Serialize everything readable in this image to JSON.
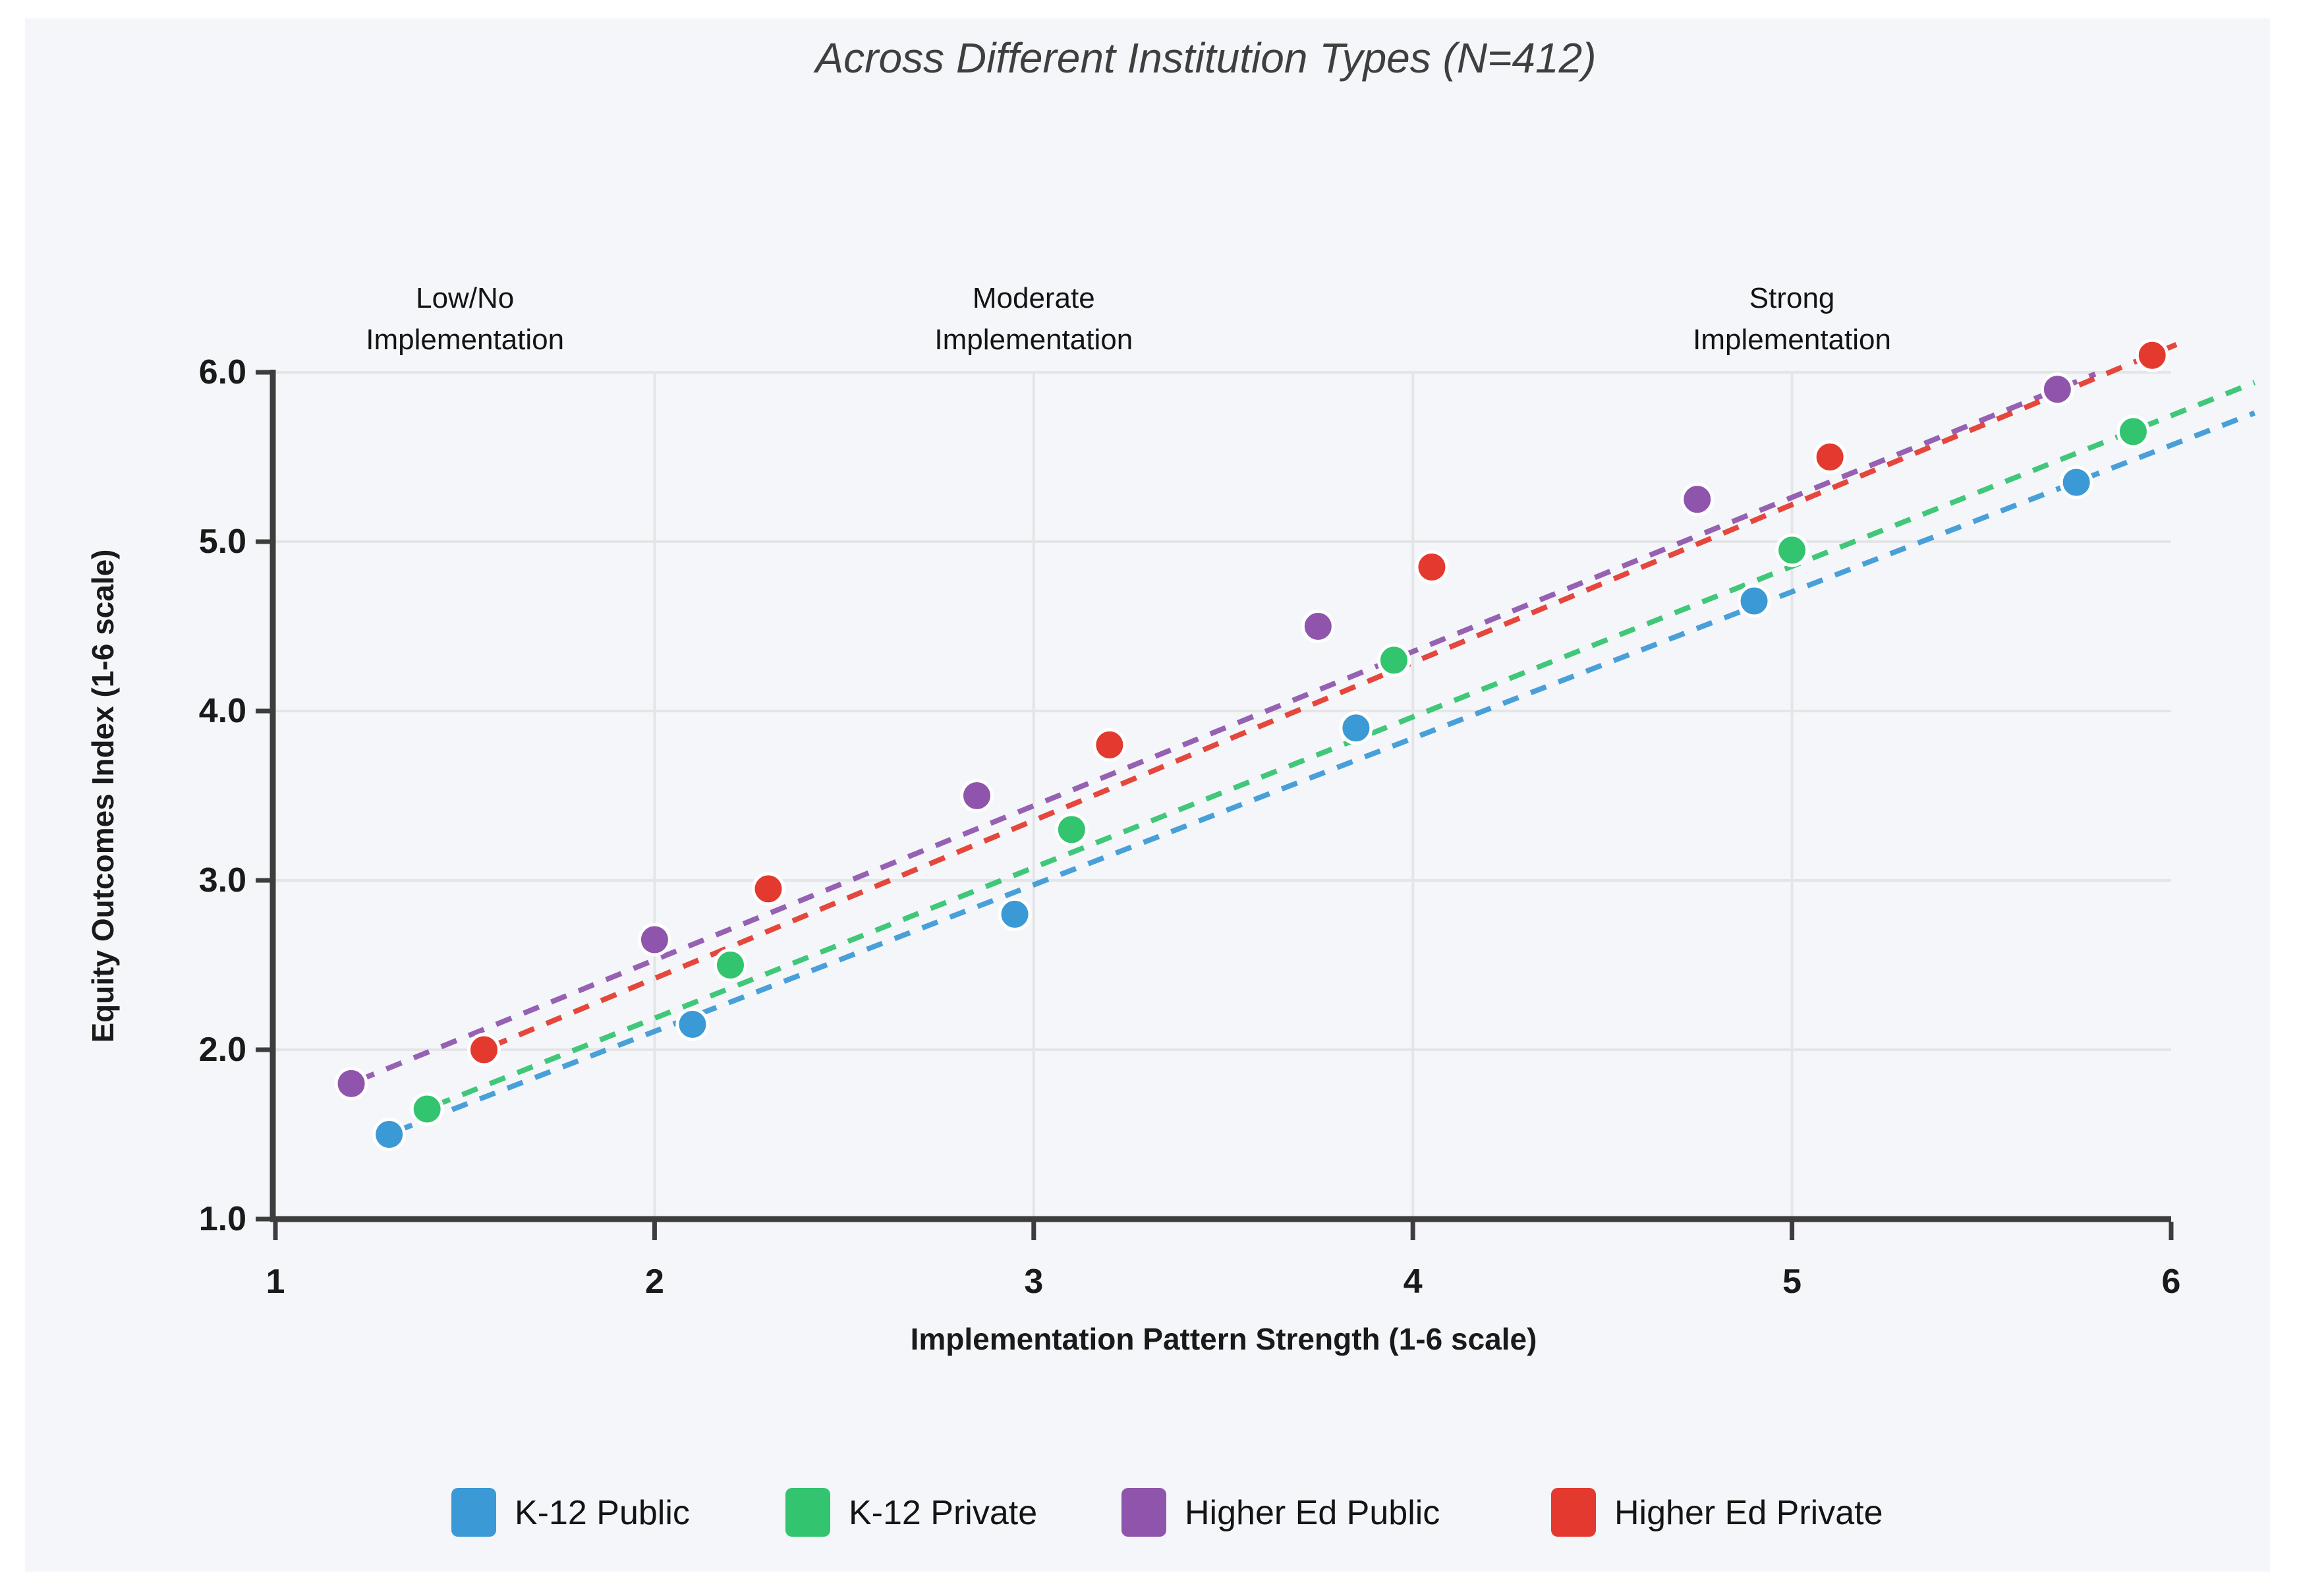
{
  "chart_data": {
    "type": "scatter",
    "title": "Across Different Institution Types (N=412)",
    "xlabel": "Implementation Pattern Strength (1-6 scale)",
    "ylabel": "Equity Outcomes Index (1-6 scale)",
    "xlim": [
      1,
      6
    ],
    "ylim": [
      1,
      6
    ],
    "grid": true,
    "legend_position": "bottom",
    "x_tick_values": [
      1,
      2,
      3,
      4,
      5,
      6
    ],
    "x_tick_labels": [
      "1",
      "2",
      "3",
      "4",
      "5",
      "6"
    ],
    "y_tick_values": [
      1,
      2,
      3,
      4,
      5,
      6
    ],
    "y_tick_labels": [
      "1.0",
      "2.0",
      "3.0",
      "4.0",
      "5.0",
      "6.0"
    ],
    "annotations": [
      {
        "x": 1.5,
        "lines": [
          "Low/No",
          "Implementation"
        ]
      },
      {
        "x": 3.0,
        "lines": [
          "Moderate",
          "Implementation"
        ]
      },
      {
        "x": 5.0,
        "lines": [
          "Strong",
          "Implementation"
        ]
      }
    ],
    "series": [
      {
        "name": "K-12 Public",
        "color": "#3b99d6",
        "points": [
          [
            1.3,
            1.5
          ],
          [
            2.1,
            2.15
          ],
          [
            2.95,
            2.8
          ],
          [
            3.85,
            3.9
          ],
          [
            4.9,
            4.65
          ],
          [
            5.75,
            5.35
          ]
        ],
        "trend": {
          "x1": 1.32,
          "y1": 1.52,
          "x2": 6.22,
          "y2": 5.76
        }
      },
      {
        "name": "K-12 Private",
        "color": "#32c46f",
        "points": [
          [
            1.4,
            1.65
          ],
          [
            2.2,
            2.5
          ],
          [
            3.1,
            3.3
          ],
          [
            3.95,
            4.3
          ],
          [
            5.0,
            4.95
          ],
          [
            5.9,
            5.65
          ]
        ],
        "trend": {
          "x1": 1.42,
          "y1": 1.67,
          "x2": 6.22,
          "y2": 5.94
        }
      },
      {
        "name": "Higher Ed Public",
        "color": "#8f55ac",
        "points": [
          [
            1.2,
            1.8
          ],
          [
            2.0,
            2.65
          ],
          [
            2.85,
            3.5
          ],
          [
            3.75,
            4.5
          ],
          [
            4.75,
            5.25
          ],
          [
            5.7,
            5.9
          ]
        ],
        "trend": {
          "x1": 1.22,
          "y1": 1.82,
          "x2": 5.8,
          "y2": 5.99
        }
      },
      {
        "name": "Higher Ed Private",
        "color": "#e4392e",
        "points": [
          [
            1.55,
            2.0
          ],
          [
            2.3,
            2.95
          ],
          [
            3.2,
            3.8
          ],
          [
            4.05,
            4.85
          ],
          [
            5.1,
            5.5
          ],
          [
            5.95,
            6.1
          ]
        ],
        "trend": {
          "x1": 1.57,
          "y1": 2.02,
          "x2": 6.02,
          "y2": 6.17
        }
      }
    ],
    "colors": {
      "canvas_background": "#f4f6f9",
      "page_background": "#ffffff",
      "gridline": "#e3e5e7",
      "spine": "#3d3d3d",
      "marker_edge": "#ffffff"
    }
  }
}
